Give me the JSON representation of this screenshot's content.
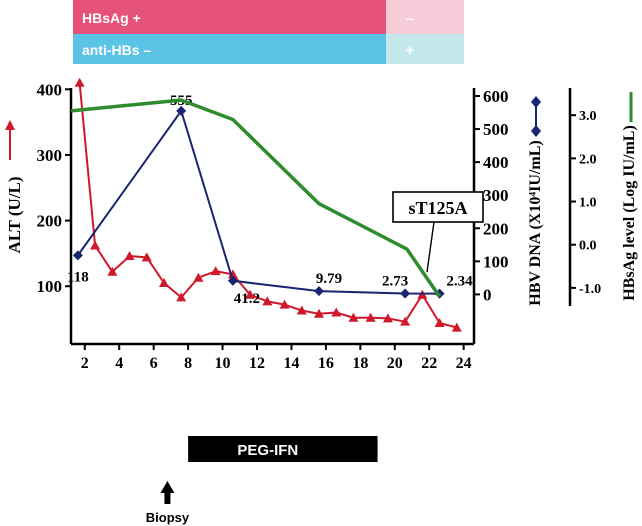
{
  "status_bars": {
    "hbsag": {
      "label": "HBsAg +",
      "after_label": "–",
      "color": "#e5537a",
      "after_color": "#f7ccd9"
    },
    "antihbs": {
      "label": "anti-HBs  –",
      "after_label": "+",
      "color": "#5bc3e6",
      "after_color": "#c4e7ec"
    }
  },
  "annotations": {
    "mutation": "sT125A",
    "treatment": "PEG-IFN",
    "biopsy": "Biopsy"
  },
  "colors": {
    "alt": "#d0182b",
    "dna": "#1a2470",
    "hbsag": "#2e8b2e"
  },
  "chart_data": {
    "type": "line",
    "xlabel": "",
    "x_ticks": [
      2,
      4,
      6,
      8,
      10,
      12,
      14,
      16,
      18,
      20,
      22,
      24
    ],
    "xlim": [
      1.2,
      24.6
    ],
    "axes": {
      "alt": {
        "label": "ALT (U/L)",
        "ticks": [
          100,
          200,
          300,
          400
        ],
        "range": [
          12,
          402
        ]
      },
      "dna": {
        "label": "HBV DNA (X10⁴IU/mL)",
        "ticks": [
          0,
          100,
          200,
          300,
          400,
          500,
          600
        ],
        "range": [
          -150,
          600
        ]
      },
      "hbsag": {
        "label": "HBsAg level (Log IU/mL)",
        "ticks": [
          "3.0",
          "2.0",
          "1.0",
          "0.0",
          "-1.0"
        ],
        "tick_values": [
          3.0,
          2.0,
          1.0,
          0.0,
          -1.0
        ],
        "range": [
          -1.42,
          3.63
        ]
      }
    },
    "series": [
      {
        "key": "alt",
        "axis": "alt",
        "marker": "triangle",
        "points": [
          [
            1.7,
            410
          ],
          [
            2.6,
            162
          ],
          [
            3.6,
            122
          ],
          [
            4.6,
            146
          ],
          [
            5.6,
            144
          ],
          [
            6.6,
            105
          ],
          [
            7.6,
            83
          ],
          [
            8.6,
            113
          ],
          [
            9.6,
            123
          ],
          [
            10.6,
            118
          ],
          [
            11.6,
            87
          ],
          [
            12.6,
            77
          ],
          [
            13.6,
            72
          ],
          [
            14.6,
            63
          ],
          [
            15.6,
            58
          ],
          [
            16.6,
            60
          ],
          [
            17.6,
            52
          ],
          [
            18.6,
            52
          ],
          [
            19.6,
            51
          ],
          [
            20.6,
            46
          ],
          [
            21.6,
            87
          ],
          [
            22.6,
            44
          ],
          [
            23.6,
            37
          ]
        ]
      },
      {
        "key": "dna",
        "axis": "dna",
        "marker": "diamond",
        "points": [
          [
            1.6,
            118
          ],
          [
            7.6,
            555
          ],
          [
            10.6,
            41.2
          ],
          [
            15.6,
            9.79
          ],
          [
            20.6,
            2.73
          ],
          [
            22.6,
            2.34
          ]
        ],
        "point_labels": [
          "118",
          "555",
          "41.2",
          "9.79",
          "2.73",
          "2.34"
        ]
      },
      {
        "key": "hbsag",
        "axis": "hbsag",
        "marker": "none",
        "points": [
          [
            1.2,
            3.1
          ],
          [
            7.6,
            3.35
          ],
          [
            10.6,
            2.9
          ],
          [
            15.6,
            0.95
          ],
          [
            20.7,
            -0.1
          ],
          [
            22.6,
            -1.2
          ]
        ]
      }
    ],
    "status_switch_week": 19.5,
    "treatment_period": [
      8,
      19
    ],
    "biopsy_week": 6.8,
    "legend": "right side markers"
  }
}
